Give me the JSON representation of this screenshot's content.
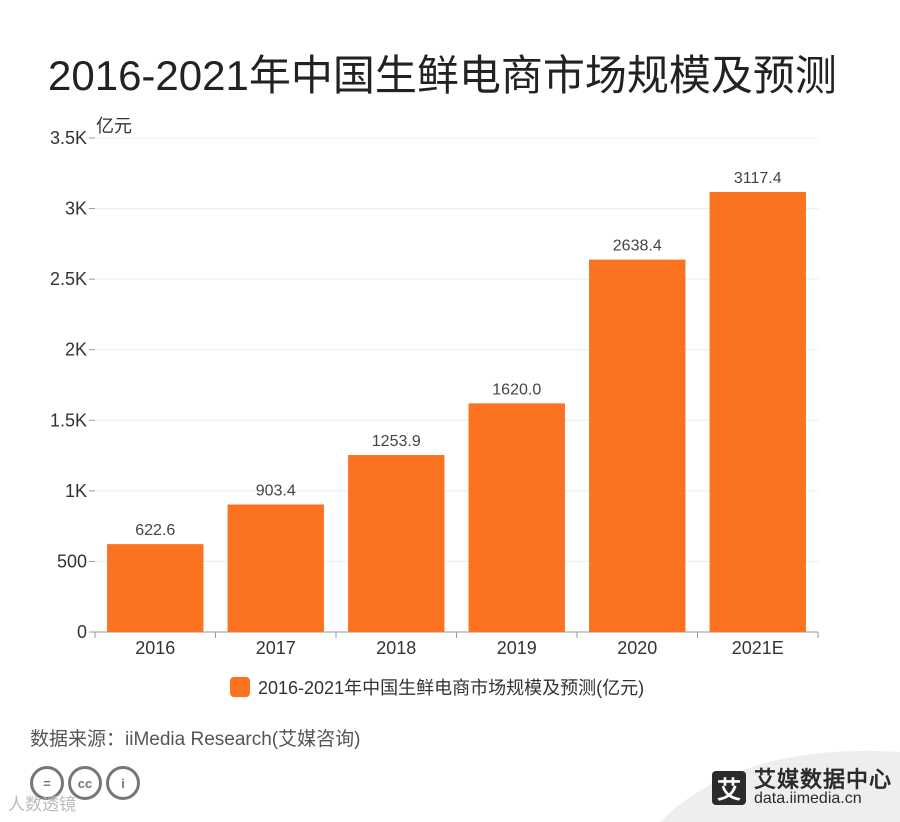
{
  "title": "2016-2021年中国生鲜电商市场规模及预测",
  "source": "数据来源：iiMedia Research(艾媒咨询)",
  "watermark": "人数透镜",
  "license_icons": [
    "=",
    "cc",
    "i"
  ],
  "brand": {
    "logo_char": "艾",
    "name": "艾媒数据中心",
    "url": "data.iimedia.cn"
  },
  "colors": {
    "bar": "#FB7320",
    "brand_dark": "#2b2b2b",
    "swoosh": "#eeeeee"
  },
  "chart_data": {
    "type": "bar",
    "title": "2016-2021年中国生鲜电商市场规模及预测",
    "ylabel": "亿元",
    "categories": [
      "2016",
      "2017",
      "2018",
      "2019",
      "2020",
      "2021E"
    ],
    "series": [
      {
        "name": "2016-2021年中国生鲜电商市场规模及预测(亿元)",
        "values": [
          622.6,
          903.4,
          1253.9,
          1620.0,
          2638.4,
          3117.4
        ],
        "labels": [
          "622.6",
          "903.4",
          "1253.9",
          "1620.0",
          "2638.4",
          "3117.4"
        ],
        "color": "#FB7320"
      }
    ],
    "ylim": [
      0,
      3500
    ],
    "yticks": [
      0,
      500,
      1000,
      1500,
      2000,
      2500,
      3000,
      3500
    ],
    "ytick_labels": [
      "0",
      "500",
      "1K",
      "1.5K",
      "2K",
      "2.5K",
      "3K",
      "3.5K"
    ],
    "grid": true,
    "legend_position": "bottom"
  }
}
